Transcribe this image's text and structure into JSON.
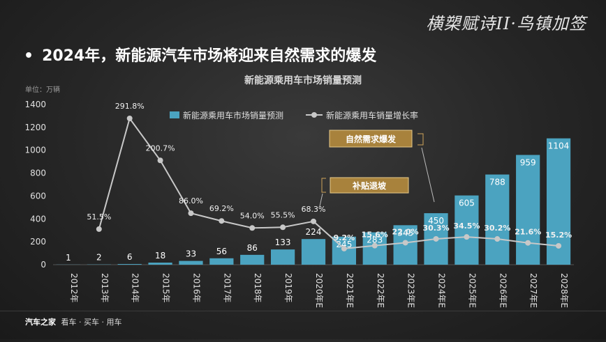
{
  "brand_text": "横槊赋诗II·鸟镇加签",
  "headline": "2024年，新能源汽车市场将迎来自然需求的爆发",
  "bullet": "•",
  "footer": {
    "logo": "汽车之家",
    "slogan": "看车 · 买车 · 用车"
  },
  "colors": {
    "bar": "#4ba3c0",
    "line": "#c8c8c8",
    "badge": "#a8823c",
    "background": "#262626"
  },
  "chart_data": {
    "type": "bar",
    "title": "新能源乘用车市场销量预测",
    "unit_label": "单位：万辆",
    "categories": [
      "2012年",
      "2013年",
      "2014年",
      "2015年",
      "2016年",
      "2017年",
      "2018年",
      "2019年",
      "2020年E",
      "2021年E",
      "2022年E",
      "2023年E",
      "2024年E",
      "2025年E",
      "2026年E",
      "2027年E",
      "2028年E"
    ],
    "series": [
      {
        "name": "新能源乘用车市场销量预测",
        "type": "bar",
        "values": [
          1,
          2,
          6,
          18,
          33,
          56,
          86,
          133,
          224,
          245,
          283,
          345,
          450,
          605,
          788,
          959,
          1104
        ],
        "labels": [
          "1",
          "2",
          "6",
          "18",
          "33",
          "56",
          "86",
          "133",
          "224",
          "245",
          "283",
          "345",
          "450",
          "605",
          "788",
          "959",
          "1104"
        ]
      },
      {
        "name": "新能源乘用车销量增长率",
        "type": "line",
        "values": [
          null,
          51.5,
          291.8,
          200.7,
          86.0,
          69.2,
          54.0,
          55.5,
          68.3,
          9.2,
          15.6,
          22.0,
          30.3,
          34.5,
          30.2,
          21.6,
          15.2
        ],
        "labels": [
          "",
          "51.5%",
          "291.8%",
          "200.7%",
          "86.0%",
          "69.2%",
          "54.0%",
          "55.5%",
          "68.3%",
          "9.2%",
          "15.6%",
          "22.0%",
          "30.3%",
          "34.5%",
          "30.2%",
          "21.6%",
          "15.2%"
        ]
      }
    ],
    "yticks": [
      "0",
      "200",
      "400",
      "600",
      "800",
      "1000",
      "1200",
      "1400"
    ],
    "ylim": [
      0,
      1400
    ],
    "annotations": [
      "补贴退坡",
      "自然需求爆发"
    ],
    "legend_position": "top"
  }
}
